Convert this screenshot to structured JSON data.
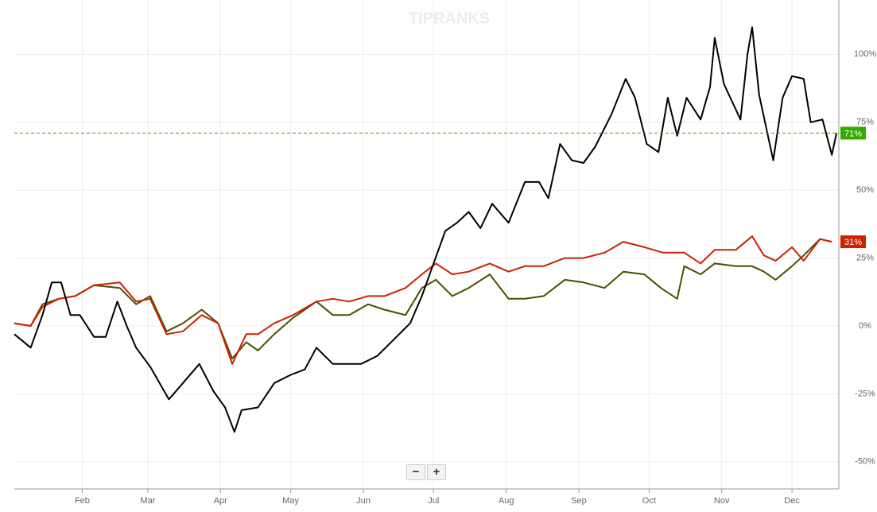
{
  "chart_data": {
    "type": "line",
    "watermark": "TIPRANKS",
    "xlim": [
      2,
      354
    ],
    "xticks": [
      {
        "value": 31,
        "label": "Feb"
      },
      {
        "value": 59,
        "label": "Mar"
      },
      {
        "value": 90,
        "label": "Apr"
      },
      {
        "value": 120,
        "label": "May"
      },
      {
        "value": 151,
        "label": "Jun"
      },
      {
        "value": 181,
        "label": "Jul"
      },
      {
        "value": 212,
        "label": "Aug"
      },
      {
        "value": 243,
        "label": "Sep"
      },
      {
        "value": 273,
        "label": "Oct"
      },
      {
        "value": 304,
        "label": "Nov"
      },
      {
        "value": 334,
        "label": "Dec"
      }
    ],
    "ylim": [
      -60,
      120
    ],
    "yticks": [
      {
        "value": -50,
        "label": "-50%"
      },
      {
        "value": -25,
        "label": "-25%"
      },
      {
        "value": 0,
        "label": "0%"
      },
      {
        "value": 25,
        "label": "25%"
      },
      {
        "value": 50,
        "label": "50%"
      },
      {
        "value": 75,
        "label": "75%"
      },
      {
        "value": 100,
        "label": "100%"
      }
    ],
    "grid": true,
    "series": [
      {
        "color": "#000000",
        "end_label": "71%",
        "end_label_color": "#33aa00",
        "x": [
          2,
          9,
          14,
          18,
          22,
          26,
          30,
          36,
          41,
          46,
          50,
          54,
          60,
          68,
          74,
          81,
          87,
          92,
          96,
          99,
          106,
          113,
          120,
          126,
          131,
          138,
          143,
          150,
          157,
          164,
          171,
          176,
          181,
          186,
          191,
          196,
          201,
          206,
          213,
          220,
          226,
          230,
          235,
          240,
          245,
          250,
          257,
          263,
          267,
          272,
          277,
          281,
          285,
          289,
          295,
          299,
          301,
          305,
          312,
          315,
          317,
          320,
          326,
          330,
          334,
          339,
          342,
          347,
          351,
          353
        ],
        "values": [
          -3,
          -8,
          4,
          16,
          16,
          4,
          4,
          -4,
          -4,
          9,
          0,
          -8,
          -15,
          -27,
          -21,
          -14,
          -24,
          -30,
          -39,
          -31,
          -30,
          -21,
          -18,
          -16,
          -8,
          -14,
          -14,
          -14,
          -11,
          -5,
          1,
          11,
          23,
          35,
          38,
          42,
          36,
          45,
          38,
          53,
          53,
          47,
          67,
          61,
          60,
          66,
          78,
          91,
          84,
          67,
          64,
          84,
          70,
          84,
          76,
          88,
          106,
          89,
          76,
          100,
          110,
          85,
          61,
          84,
          92,
          91,
          75,
          76,
          63,
          71
        ]
      },
      {
        "color": "#cc2200",
        "end_label": "31%",
        "end_label_color": "#cc2200",
        "x": [
          2,
          9,
          14,
          21,
          28,
          36,
          47,
          54,
          60,
          67,
          74,
          82,
          89,
          95,
          101,
          106,
          113,
          121,
          131,
          138,
          145,
          153,
          160,
          169,
          176,
          182,
          189,
          196,
          205,
          213,
          220,
          228,
          237,
          245,
          254,
          262,
          271,
          279,
          288,
          295,
          301,
          310,
          317,
          322,
          327,
          334,
          339,
          346,
          351
        ],
        "values": [
          1,
          0,
          7,
          10,
          11,
          15,
          16,
          9,
          10,
          -3,
          -2,
          4,
          1,
          -14,
          -3,
          -3,
          1,
          4,
          9,
          10,
          9,
          11,
          11,
          14,
          19,
          23,
          19,
          20,
          23,
          20,
          22,
          22,
          25,
          25,
          27,
          31,
          29,
          27,
          27,
          23,
          28,
          28,
          33,
          26,
          24,
          29,
          24,
          32,
          31
        ]
      },
      {
        "color": "#4d4d00",
        "x": [
          2,
          9,
          14,
          21,
          28,
          36,
          47,
          54,
          60,
          67,
          74,
          82,
          89,
          95,
          101,
          106,
          113,
          121,
          131,
          138,
          145,
          153,
          160,
          169,
          176,
          182,
          189,
          196,
          205,
          213,
          220,
          228,
          237,
          245,
          254,
          262,
          271,
          278,
          285,
          288,
          295,
          301,
          310,
          317,
          322,
          327,
          334,
          339,
          346,
          351
        ],
        "values": [
          1,
          0,
          8,
          10,
          11,
          15,
          14,
          8,
          11,
          -2,
          1,
          6,
          1,
          -12,
          -6,
          -9,
          -3,
          3,
          9,
          4,
          4,
          8,
          6,
          4,
          14,
          17,
          11,
          14,
          19,
          10,
          10,
          11,
          17,
          16,
          14,
          20,
          19,
          14,
          10,
          22,
          19,
          23,
          22,
          22,
          20,
          17,
          22,
          26,
          32,
          31
        ]
      }
    ],
    "zoom_controls": [
      "−",
      "+"
    ]
  }
}
